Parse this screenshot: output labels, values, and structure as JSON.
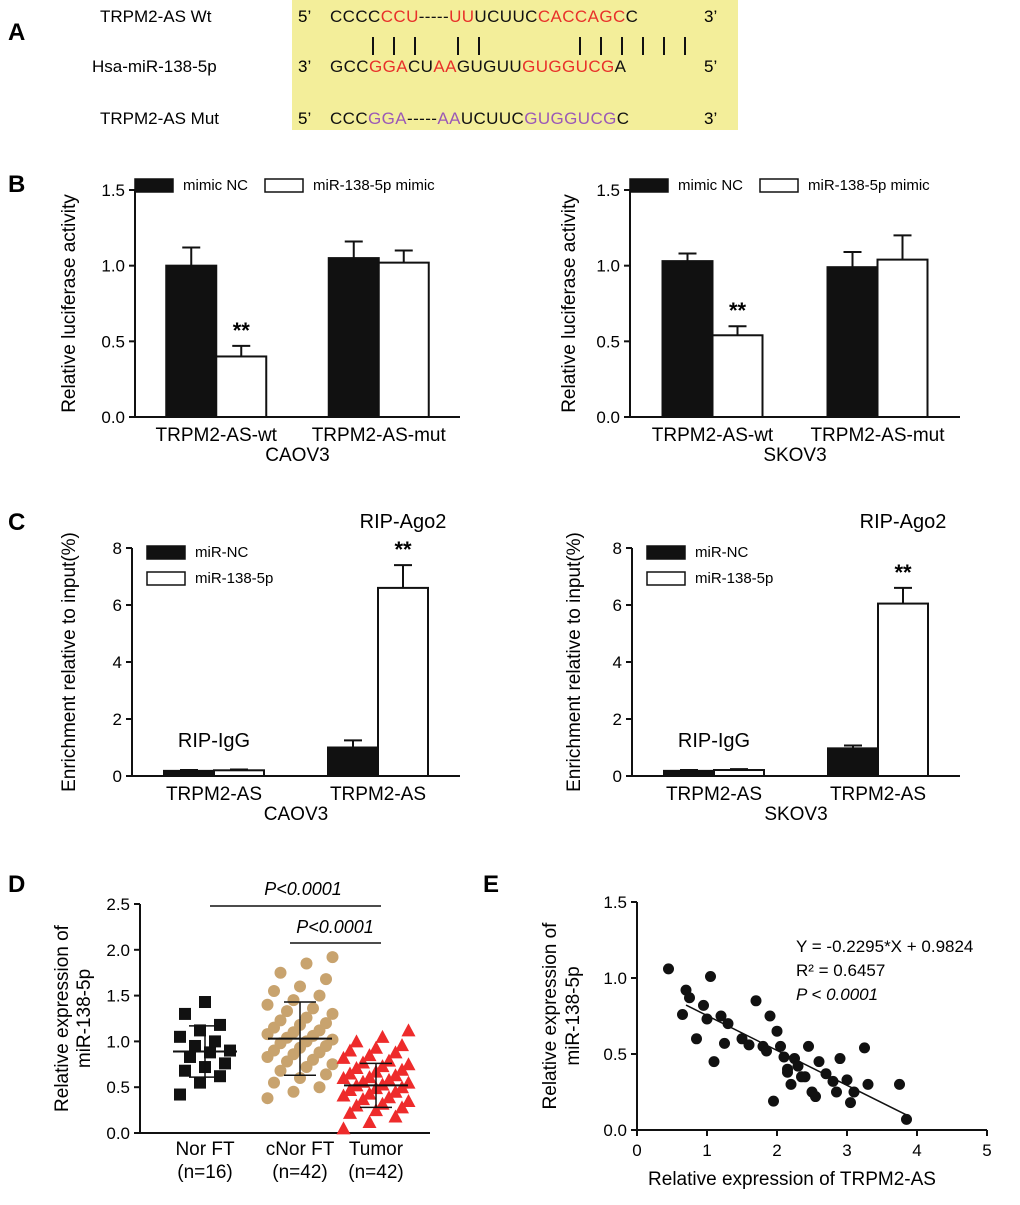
{
  "panels": {
    "A": "A",
    "B": "B",
    "C": "C",
    "D": "D",
    "E": "E"
  },
  "colors": {
    "match": "#e8312a",
    "mut": "#9b59b6",
    "box": "#f3ee9a",
    "tan": "#c8a36e",
    "red": "#ee2b2b"
  },
  "sequences": {
    "wt_label": "TRPM2-AS  Wt",
    "mir_label": "Hsa-miR-138-5p",
    "mut_label": "TRPM2-AS  Mut",
    "wt": {
      "p5": "5’",
      "p3": "3’",
      "segments": [
        {
          "t": "CCCC",
          "c": "black"
        },
        {
          "t": "CCU",
          "c": "red"
        },
        {
          "t": "-----",
          "c": "black"
        },
        {
          "t": "UU",
          "c": "red"
        },
        {
          "t": "UCUUC",
          "c": "black"
        },
        {
          "t": "CACCAGC",
          "c": "red"
        },
        {
          "t": "C",
          "c": "black"
        }
      ]
    },
    "pairs": "|||     ||        |||||||",
    "mir": {
      "p5": "3’",
      "p3": "5’",
      "segments": [
        {
          "t": "GCC",
          "c": "black"
        },
        {
          "t": "GGA",
          "c": "red"
        },
        {
          "t": "CU",
          "c": "black"
        },
        {
          "t": "AA",
          "c": "red"
        },
        {
          "t": "GUGUU",
          "c": "black"
        },
        {
          "t": "GUGGUCG",
          "c": "red"
        },
        {
          "t": "A",
          "c": "black"
        }
      ]
    },
    "mut": {
      "p5": "5’",
      "p3": "3’",
      "segments": [
        {
          "t": "CCC",
          "c": "black"
        },
        {
          "t": "GGA",
          "c": "purple"
        },
        {
          "t": "-----",
          "c": "black"
        },
        {
          "t": "AA",
          "c": "purple"
        },
        {
          "t": "UCUUC",
          "c": "black"
        },
        {
          "t": "GUGGUCG",
          "c": "purple"
        },
        {
          "t": "C",
          "c": "black"
        }
      ]
    }
  },
  "chart_data": [
    {
      "id": "B-CAOV3",
      "type": "bar",
      "title": "",
      "xlabel": "CAOV3",
      "ylabel": "Relative luciferase activity",
      "ylim": [
        0,
        1.5
      ],
      "yticks": [
        "0.0",
        "0.5",
        "1.0",
        "1.5"
      ],
      "categories": [
        "TRPM2-AS-wt",
        "TRPM2-AS-mut"
      ],
      "series": [
        {
          "name": "mimic NC",
          "values": [
            1.0,
            1.05
          ],
          "errors": [
            0.12,
            0.11
          ]
        },
        {
          "name": "miR-138-5p mimic",
          "values": [
            0.4,
            1.02
          ],
          "errors": [
            0.07,
            0.08
          ]
        }
      ],
      "annotations": [
        {
          "text": "**",
          "category": 0,
          "series": 1
        }
      ]
    },
    {
      "id": "B-SKOV3",
      "type": "bar",
      "title": "",
      "xlabel": "SKOV3",
      "ylabel": "Relative luciferase activity",
      "ylim": [
        0,
        1.5
      ],
      "yticks": [
        "0.0",
        "0.5",
        "1.0",
        "1.5"
      ],
      "categories": [
        "TRPM2-AS-wt",
        "TRPM2-AS-mut"
      ],
      "series": [
        {
          "name": "mimic NC",
          "values": [
            1.03,
            0.99
          ],
          "errors": [
            0.05,
            0.1
          ]
        },
        {
          "name": "miR-138-5p mimic",
          "values": [
            0.54,
            1.04
          ],
          "errors": [
            0.06,
            0.16
          ]
        }
      ],
      "annotations": [
        {
          "text": "**",
          "category": 0,
          "series": 1
        }
      ]
    },
    {
      "id": "C-CAOV3",
      "type": "bar",
      "title": "",
      "xlabel": "CAOV3",
      "ylabel": "Enrichment relative to input(%)",
      "ylim": [
        0,
        8
      ],
      "yticks": [
        "0",
        "2",
        "4",
        "6",
        "8"
      ],
      "categories": [
        "TRPM2-AS",
        "TRPM2-AS"
      ],
      "group_labels": [
        "RIP-IgG",
        "RIP-Ago2"
      ],
      "series": [
        {
          "name": "miR-NC",
          "values": [
            0.18,
            1.0
          ],
          "errors": [
            0.03,
            0.25
          ]
        },
        {
          "name": "miR-138-5p",
          "values": [
            0.2,
            6.6
          ],
          "errors": [
            0.03,
            0.8
          ]
        }
      ],
      "annotations": [
        {
          "text": "**",
          "category": 1,
          "series": 1
        }
      ]
    },
    {
      "id": "C-SKOV3",
      "type": "bar",
      "title": "",
      "xlabel": "SKOV3",
      "ylabel": "Enrichment relative to input(%)",
      "ylim": [
        0,
        8
      ],
      "yticks": [
        "0",
        "2",
        "4",
        "6",
        "8"
      ],
      "categories": [
        "TRPM2-AS",
        "TRPM2-AS"
      ],
      "group_labels": [
        "RIP-IgG",
        "RIP-Ago2"
      ],
      "series": [
        {
          "name": "miR-NC",
          "values": [
            0.18,
            0.97
          ],
          "errors": [
            0.03,
            0.1
          ]
        },
        {
          "name": "miR-138-5p",
          "values": [
            0.21,
            6.05
          ],
          "errors": [
            0.03,
            0.55
          ]
        }
      ],
      "annotations": [
        {
          "text": "**",
          "category": 1,
          "series": 1
        }
      ]
    },
    {
      "id": "D",
      "type": "scatter",
      "title": "",
      "xlabel": "",
      "ylabel": "Relative expression of miR-138-5p",
      "ylabel_lines": [
        "Relative expression of",
        "miR-138-5p"
      ],
      "ylim": [
        0,
        2.5
      ],
      "yticks": [
        "0.0",
        "0.5",
        "1.0",
        "1.5",
        "2.0",
        "2.5"
      ],
      "groups": [
        {
          "name": "Nor FT",
          "n": "(n=16)",
          "marker": "square",
          "mean": 0.89,
          "sd": 0.28,
          "values": [
            0.42,
            0.55,
            0.62,
            0.68,
            0.72,
            0.76,
            0.83,
            0.88,
            0.9,
            0.95,
            1.0,
            1.05,
            1.12,
            1.18,
            1.3,
            1.43
          ]
        },
        {
          "name": "cNor FT",
          "n": "(n=42)",
          "marker": "circle",
          "mean": 1.03,
          "sd": 0.4,
          "values": [
            0.38,
            0.45,
            0.5,
            0.55,
            0.6,
            0.64,
            0.68,
            0.72,
            0.75,
            0.78,
            0.8,
            0.83,
            0.86,
            0.88,
            0.9,
            0.93,
            0.95,
            0.98,
            1.0,
            1.02,
            1.04,
            1.06,
            1.08,
            1.1,
            1.12,
            1.15,
            1.18,
            1.2,
            1.23,
            1.26,
            1.3,
            1.33,
            1.36,
            1.4,
            1.45,
            1.5,
            1.55,
            1.6,
            1.68,
            1.75,
            1.85,
            1.92
          ]
        },
        {
          "name": "Tumor",
          "n": "(n=42)",
          "marker": "triangle",
          "mean": 0.52,
          "sd": 0.24,
          "values": [
            0.05,
            0.12,
            0.18,
            0.22,
            0.25,
            0.28,
            0.3,
            0.32,
            0.35,
            0.37,
            0.39,
            0.41,
            0.43,
            0.45,
            0.47,
            0.49,
            0.5,
            0.52,
            0.53,
            0.55,
            0.56,
            0.58,
            0.6,
            0.61,
            0.63,
            0.65,
            0.67,
            0.69,
            0.71,
            0.73,
            0.75,
            0.77,
            0.79,
            0.82,
            0.85,
            0.88,
            0.9,
            0.93,
            0.96,
            1.0,
            1.05,
            1.12
          ]
        }
      ],
      "comparisons": [
        {
          "from": 0,
          "to": 2,
          "label": "P<0.0001"
        },
        {
          "from": 1,
          "to": 2,
          "label": "P<0.0001"
        }
      ]
    },
    {
      "id": "E",
      "type": "scatter",
      "title": "",
      "xlabel": "Relative expression of TRPM2-AS",
      "ylabel": "Relative expression of miR-138-5p",
      "ylabel_lines": [
        "Relative expression of",
        "miR-138-5p"
      ],
      "xlim": [
        0,
        5
      ],
      "ylim": [
        0,
        1.5
      ],
      "xticks": [
        "0",
        "1",
        "2",
        "3",
        "4",
        "5"
      ],
      "yticks": [
        "0.0",
        "0.5",
        "1.0",
        "1.5"
      ],
      "points": [
        [
          0.45,
          1.06
        ],
        [
          0.7,
          0.92
        ],
        [
          0.75,
          0.87
        ],
        [
          0.65,
          0.76
        ],
        [
          0.95,
          0.82
        ],
        [
          1.05,
          1.01
        ],
        [
          1.0,
          0.73
        ],
        [
          0.85,
          0.6
        ],
        [
          1.2,
          0.75
        ],
        [
          1.3,
          0.7
        ],
        [
          1.25,
          0.57
        ],
        [
          1.1,
          0.45
        ],
        [
          1.5,
          0.6
        ],
        [
          1.6,
          0.56
        ],
        [
          1.7,
          0.85
        ],
        [
          1.8,
          0.55
        ],
        [
          1.85,
          0.52
        ],
        [
          1.9,
          0.75
        ],
        [
          2.0,
          0.65
        ],
        [
          2.05,
          0.55
        ],
        [
          2.1,
          0.48
        ],
        [
          2.15,
          0.4
        ],
        [
          2.2,
          0.3
        ],
        [
          2.25,
          0.47
        ],
        [
          2.3,
          0.42
        ],
        [
          2.4,
          0.35
        ],
        [
          2.45,
          0.55
        ],
        [
          2.5,
          0.25
        ],
        [
          2.55,
          0.22
        ],
        [
          2.6,
          0.45
        ],
        [
          2.7,
          0.37
        ],
        [
          2.8,
          0.32
        ],
        [
          2.85,
          0.25
        ],
        [
          2.9,
          0.47
        ],
        [
          3.0,
          0.33
        ],
        [
          3.05,
          0.18
        ],
        [
          3.1,
          0.25
        ],
        [
          3.25,
          0.54
        ],
        [
          3.3,
          0.3
        ],
        [
          1.95,
          0.19
        ],
        [
          3.75,
          0.3
        ],
        [
          3.85,
          0.07
        ],
        [
          2.15,
          0.38
        ],
        [
          2.35,
          0.35
        ]
      ],
      "fit": {
        "slope": -0.2295,
        "intercept": 0.9824,
        "x_range": [
          0.45,
          3.85
        ]
      },
      "stats": [
        "Y = -0.2295*X + 0.9824",
        "R² = 0.6457",
        "P < 0.0001"
      ]
    }
  ]
}
